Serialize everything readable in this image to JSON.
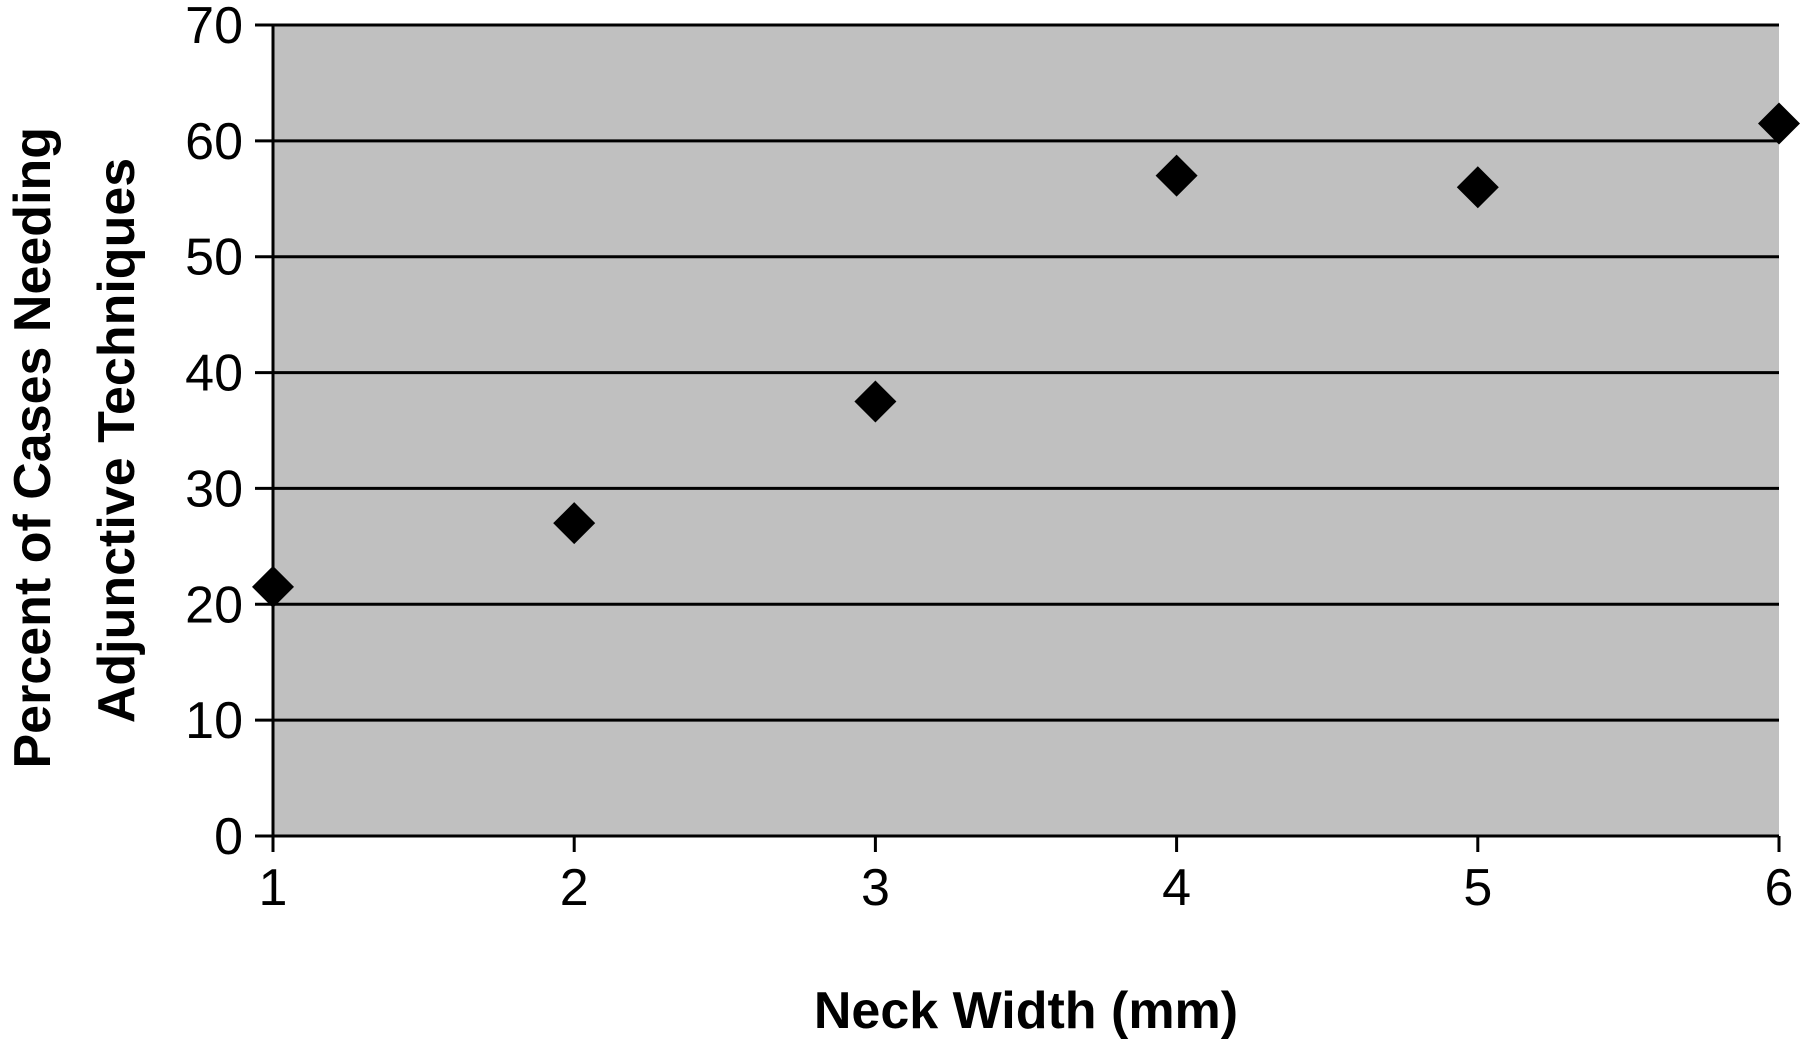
{
  "chart_data": {
    "type": "scatter",
    "xlabel": "Neck Width (mm)",
    "ylabel_lines": [
      "Percent of Cases Needing",
      "Adjunctive Techniques"
    ],
    "xlim": [
      1,
      6
    ],
    "ylim": [
      0,
      70
    ],
    "x_ticks": [
      "1",
      "2",
      "3",
      "4",
      "5",
      "6"
    ],
    "y_ticks": [
      "0",
      "10",
      "20",
      "30",
      "40",
      "50",
      "60",
      "70"
    ],
    "grid": "horizontal",
    "legend": "none",
    "marker": "diamond",
    "points": [
      {
        "x": 1,
        "y": 21.5
      },
      {
        "x": 2,
        "y": 27
      },
      {
        "x": 3,
        "y": 37.5
      },
      {
        "x": 4,
        "y": 57
      },
      {
        "x": 5,
        "y": 56
      },
      {
        "x": 6,
        "y": 61.5
      }
    ],
    "colors": {
      "plot_background": "#c0c0c0",
      "gridline": "#000000",
      "marker": "#000000",
      "text": "#000000"
    }
  }
}
